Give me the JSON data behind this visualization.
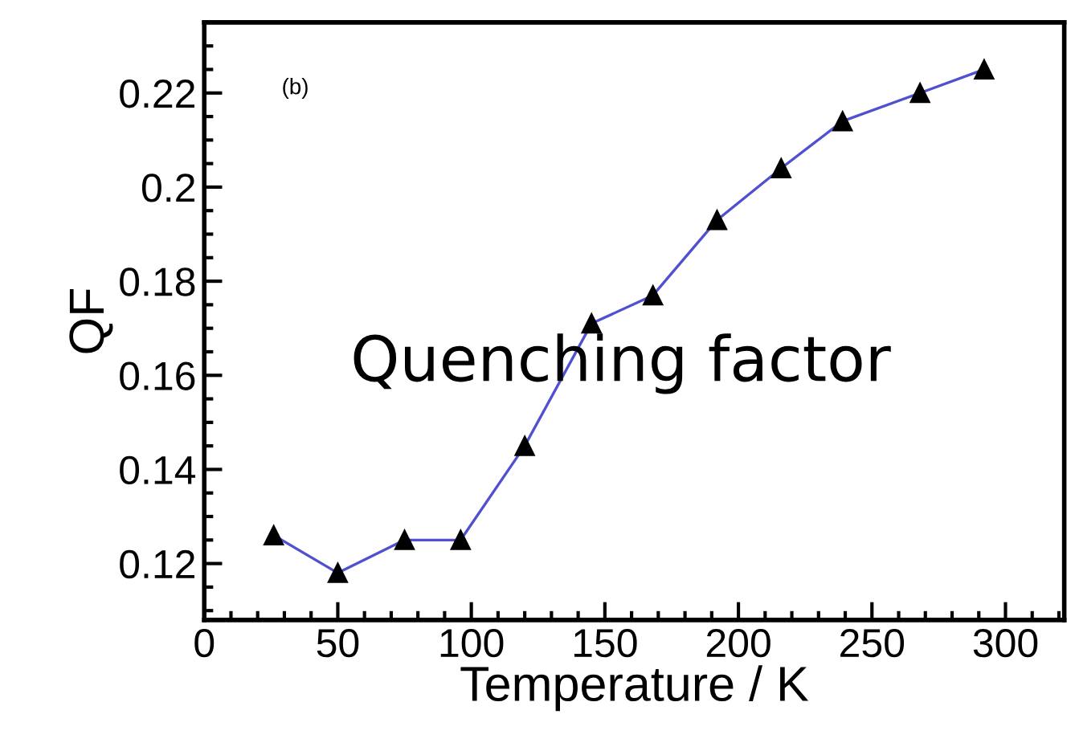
{
  "chart_data": {
    "type": "line",
    "xlabel": "Temperature / K",
    "ylabel": "QF",
    "x": [
      26,
      50,
      75,
      96,
      120,
      145,
      168,
      192,
      216,
      239,
      268,
      292
    ],
    "series": [
      {
        "color": "#5050d0",
        "values": [
          0.126,
          0.118,
          0.125,
          0.125,
          0.145,
          0.171,
          0.177,
          0.193,
          0.204,
          0.214,
          0.22,
          0.225
        ]
      }
    ],
    "marker": "triangle",
    "line_style": "solid",
    "grid": false,
    "legend": false,
    "xlim": [
      0,
      322
    ],
    "ylim": [
      0.108,
      0.235
    ],
    "xticks": [
      0,
      50,
      100,
      150,
      200,
      250,
      300
    ],
    "yticks": [
      0.12,
      0.14,
      0.16,
      0.18,
      {
        "value": 0.2,
        "label": "0.2"
      },
      0.22
    ],
    "annotations": [
      "(b)",
      "Quenching factor"
    ]
  }
}
